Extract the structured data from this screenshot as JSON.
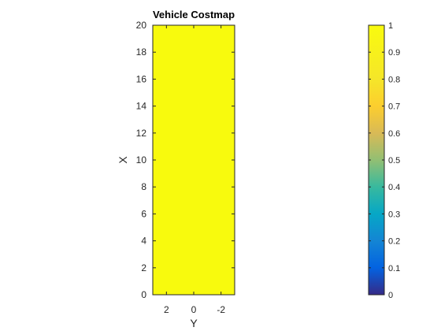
{
  "chart_data": {
    "type": "heatmap",
    "title": "Vehicle Costmap",
    "xlabel": "Y",
    "ylabel": "X",
    "x_ticks": [
      2,
      0,
      -2
    ],
    "x_tick_labels": [
      "2",
      "0",
      "-2"
    ],
    "x_range": [
      3,
      -3
    ],
    "y_ticks": [
      0,
      2,
      4,
      6,
      8,
      10,
      12,
      14,
      16,
      18,
      20
    ],
    "y_tick_labels": [
      "0",
      "2",
      "4",
      "6",
      "8",
      "10",
      "12",
      "14",
      "16",
      "18",
      "20"
    ],
    "y_range": [
      0,
      20
    ],
    "values": [
      [
        1
      ]
    ],
    "cell_color": "#f8fa0d",
    "colorbar": {
      "range": [
        0,
        1
      ],
      "ticks": [
        0,
        0.1,
        0.2,
        0.3,
        0.4,
        0.5,
        0.6,
        0.7,
        0.8,
        0.9,
        1
      ],
      "tick_labels": [
        "0",
        "0.1",
        "0.2",
        "0.3",
        "0.4",
        "0.5",
        "0.6",
        "0.7",
        "0.8",
        "0.9",
        "1"
      ],
      "colormap": "parula"
    },
    "grid": false
  }
}
